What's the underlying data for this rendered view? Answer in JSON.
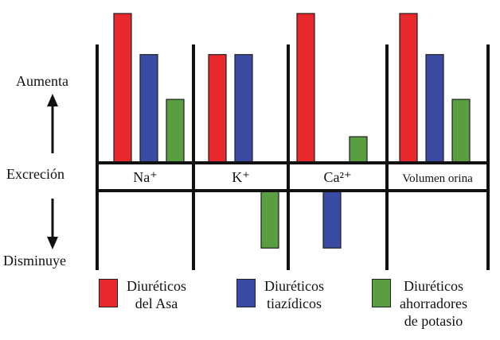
{
  "chart_data": {
    "type": "bar",
    "title": "",
    "ylabel": "Excreción",
    "y_top_label": "Aumenta",
    "y_bottom_label": "Disminuye",
    "categories": [
      "Na⁺",
      "K⁺",
      "Ca²⁺",
      "Volumen orina"
    ],
    "ylim": [
      -1,
      2
    ],
    "series": [
      {
        "name": "Diuréticos del Asa",
        "color": "#e8282d",
        "values": [
          2,
          1.45,
          2,
          2
        ]
      },
      {
        "name": "Diuréticos tiazídicos",
        "color": "#3a4ba3",
        "values": [
          1.45,
          1.45,
          -0.85,
          1.45
        ]
      },
      {
        "name": "Diuréticos ahorradores de potasio",
        "color": "#5a9e42",
        "values": [
          0.85,
          -0.85,
          0.35,
          0.85
        ]
      }
    ]
  },
  "legend": [
    {
      "label": "Diuréticos\ndel Asa",
      "color": "#e8282d"
    },
    {
      "label": "Diuréticos\ntiazídicos",
      "color": "#3a4ba3"
    },
    {
      "label": "Diuréticos\nahorradores\nde potasio",
      "color": "#5a9e42"
    }
  ]
}
